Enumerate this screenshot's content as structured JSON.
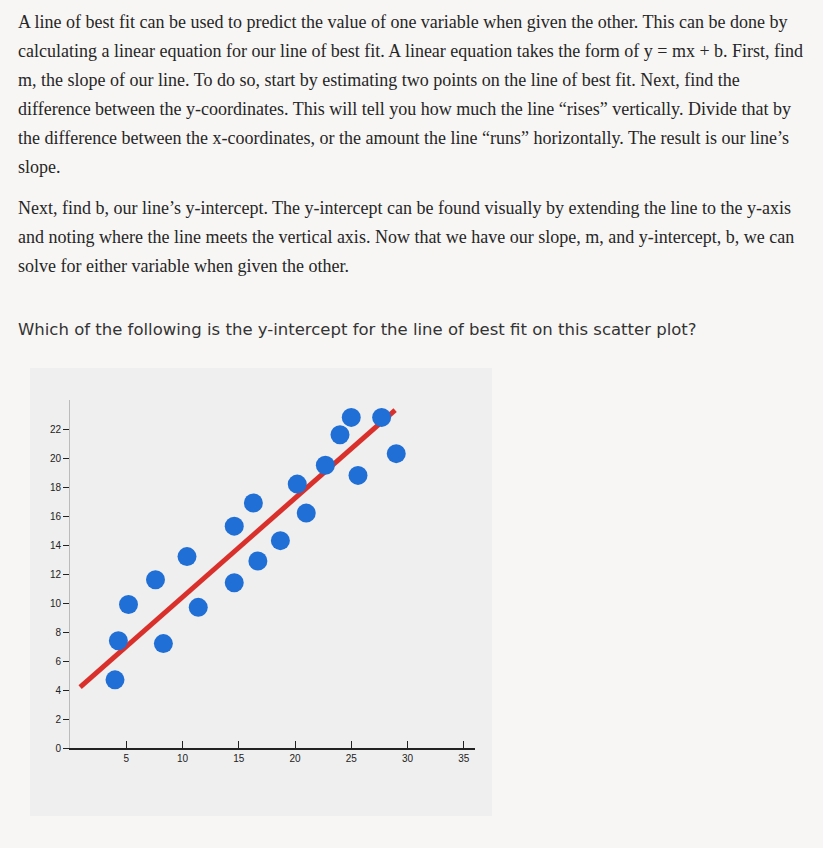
{
  "document": {
    "paragraphs": [
      "A line of best fit can be used to predict the value of one variable when given the other. This can be done by calculating a linear equation for our line of best fit. A linear equation takes the form of y = mx + b. First, find m, the slope of our line. To do so, start by estimating two points on the line of best fit. Next, find the difference between the y-coordinates. This will tell you how much the line “rises” vertically. Divide that by the difference between the x-coordinates, or the amount the line “runs” horizontally. The result is our line’s slope.",
      "Next, find b, our line’s y-intercept. The y-intercept can be found visually by extending the line to the y-axis and noting where the line meets the vertical axis. Now that we have our slope, m, and y-intercept, b, we can solve for either variable when given the other."
    ],
    "question": "Which of the following is the y-intercept for the line of best fit on this scatter plot?"
  },
  "chart_data": {
    "type": "scatter",
    "series": [
      {
        "type": "scatter",
        "color": "#1f6fd6",
        "marker": "circle",
        "x": [
          4.0,
          4.3,
          8.3,
          5.2,
          7.6,
          11.4,
          10.4,
          14.6,
          16.7,
          14.6,
          18.7,
          16.3,
          21.0,
          20.2,
          22.7,
          25.6,
          24.0,
          25.0,
          27.7,
          29.0
        ],
        "values": [
          4.7,
          7.4,
          7.2,
          9.9,
          11.6,
          9.7,
          13.2,
          11.4,
          12.9,
          15.3,
          14.3,
          16.9,
          16.2,
          18.2,
          19.5,
          18.8,
          21.6,
          22.8,
          22.8,
          20.3
        ]
      },
      {
        "type": "line",
        "color": "#d9302b",
        "line_style": "solid",
        "x": [
          0.9,
          28.9
        ],
        "values": [
          4.2,
          23.3
        ]
      }
    ],
    "xlim": [
      0,
      36
    ],
    "ylim": [
      0,
      24
    ],
    "xticks": [
      5,
      10,
      15,
      20,
      25,
      30,
      35
    ],
    "yticks": [
      0,
      2,
      4,
      6,
      8,
      10,
      12,
      14,
      16,
      18,
      20,
      22
    ],
    "grid": false
  }
}
